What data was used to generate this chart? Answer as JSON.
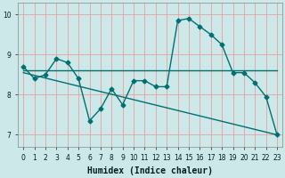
{
  "xlabel": "Humidex (Indice chaleur)",
  "bg_color": "#cce8e8",
  "grid_color": "#e8a0a0",
  "line_color": "#007070",
  "xlim": [
    -0.5,
    23.5
  ],
  "ylim": [
    6.7,
    10.3
  ],
  "xticks": [
    0,
    1,
    2,
    3,
    4,
    5,
    6,
    7,
    8,
    9,
    10,
    11,
    12,
    13,
    14,
    15,
    16,
    17,
    18,
    19,
    20,
    21,
    22,
    23
  ],
  "yticks": [
    7,
    8,
    9,
    10
  ],
  "line1_x": [
    0,
    1,
    2,
    3,
    4,
    5,
    6,
    7,
    8,
    9,
    10,
    11,
    12,
    13,
    14,
    15,
    16,
    17,
    18,
    19,
    20,
    21,
    22,
    23
  ],
  "line1_y": [
    8.7,
    8.4,
    8.5,
    8.9,
    8.8,
    8.4,
    7.35,
    7.65,
    8.15,
    7.75,
    8.35,
    8.35,
    8.2,
    8.2,
    9.85,
    9.9,
    9.7,
    9.5,
    9.25,
    8.55,
    8.55,
    8.3,
    7.95,
    7.0
  ],
  "line2_x": [
    0,
    18,
    23
  ],
  "line2_y": [
    8.6,
    8.6,
    8.6
  ],
  "line3_x": [
    0,
    23
  ],
  "line3_y": [
    8.55,
    7.0
  ],
  "marker": "D",
  "markersize": 2.5,
  "linewidth": 1.0,
  "xlabel_fontsize": 7,
  "tick_fontsize": 5.5
}
